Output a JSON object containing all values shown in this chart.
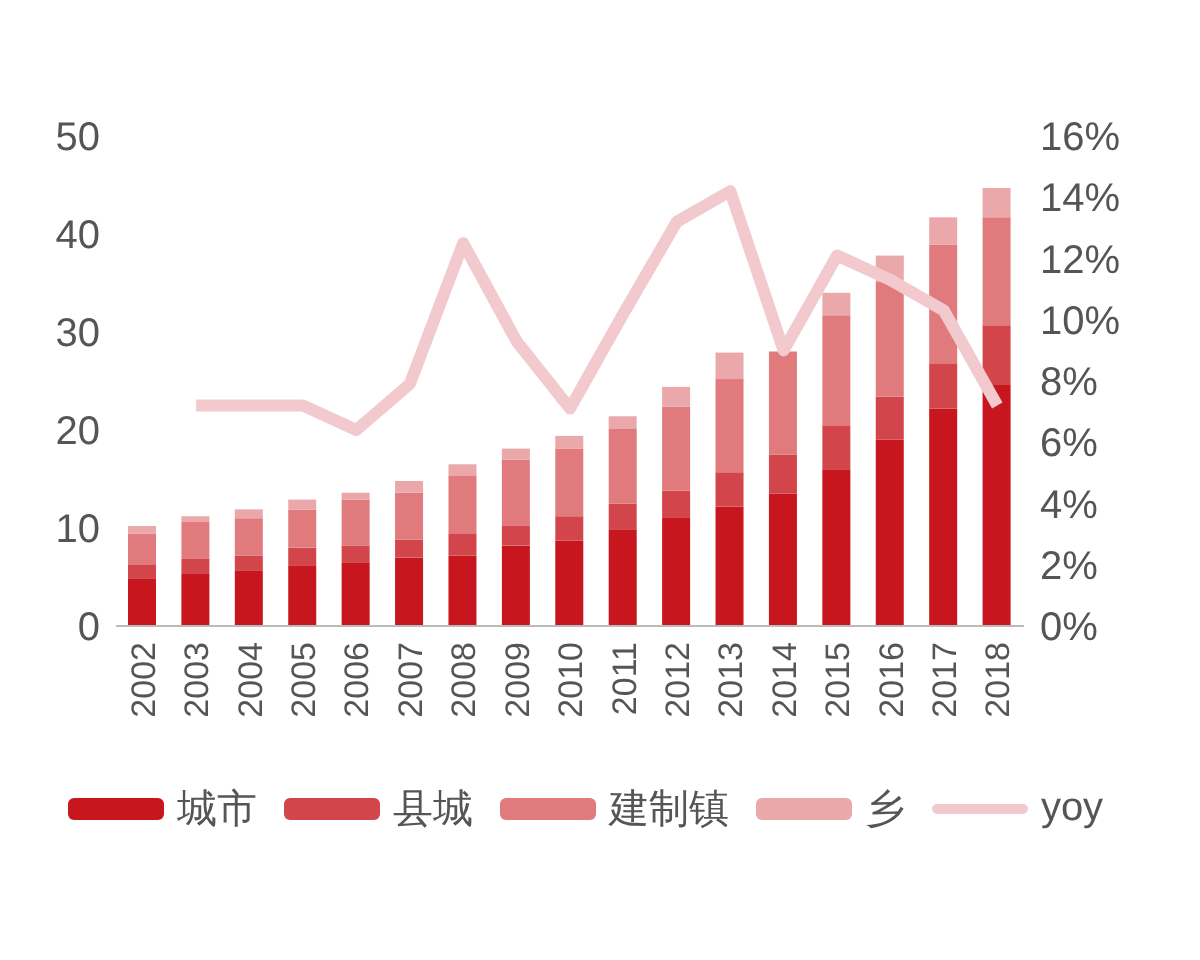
{
  "chart_data": {
    "type": "bar",
    "stacked": true,
    "categories": [
      "2002",
      "2003",
      "2004",
      "2005",
      "2006",
      "2007",
      "2008",
      "2009",
      "2010",
      "2011",
      "2012",
      "2013",
      "2014",
      "2015",
      "2016",
      "2017",
      "2018"
    ],
    "series": [
      {
        "name": "城市",
        "color": "#c8161e",
        "values": [
          4.8,
          5.3,
          5.7,
          6.2,
          6.5,
          7.0,
          7.2,
          8.2,
          8.7,
          9.8,
          11.1,
          12.2,
          13.5,
          16.0,
          19.0,
          22.2,
          24.6
        ]
      },
      {
        "name": "县城",
        "color": "#d2464b",
        "values": [
          1.5,
          1.6,
          1.5,
          1.8,
          1.7,
          1.8,
          2.2,
          2.0,
          2.5,
          2.7,
          2.7,
          3.5,
          4.0,
          4.4,
          4.4,
          4.6,
          6.1
        ]
      },
      {
        "name": "建制镇",
        "color": "#e07a7d",
        "values": [
          3.1,
          3.7,
          3.8,
          3.9,
          4.7,
          4.8,
          5.9,
          6.8,
          6.9,
          7.6,
          8.6,
          9.5,
          10.5,
          11.3,
          11.7,
          12.1,
          11.0
        ]
      },
      {
        "name": "乡",
        "color": "#eaa8ab",
        "values": [
          0.8,
          0.6,
          0.9,
          1.0,
          0.7,
          1.2,
          1.2,
          1.1,
          1.3,
          1.3,
          2.0,
          2.7,
          null,
          2.3,
          2.7,
          2.8,
          3.0
        ]
      },
      {
        "name": "yoy",
        "type": "line",
        "axis": "y2",
        "color": "#f2c9cc",
        "values": [
          null,
          7.2,
          7.2,
          7.2,
          6.4,
          7.9,
          12.5,
          9.3,
          7.1,
          10.2,
          13.2,
          14.2,
          9.0,
          12.1,
          11.3,
          10.3,
          7.2
        ]
      }
    ],
    "ylim": [
      0,
      50
    ],
    "yticks": [
      0,
      10,
      20,
      30,
      40,
      50
    ],
    "y2lim": [
      0,
      16
    ],
    "y2ticks": [
      {
        "value": 0,
        "label": "0%"
      },
      {
        "value": 2,
        "label": "2%"
      },
      {
        "value": 4,
        "label": "4%"
      },
      {
        "value": 6,
        "label": "6%"
      },
      {
        "value": 8,
        "label": "8%"
      },
      {
        "value": 10,
        "label": "10%"
      },
      {
        "value": 12,
        "label": "12%"
      },
      {
        "value": 14,
        "label": "14%"
      },
      {
        "value": 16,
        "label": "16%"
      }
    ],
    "grid": false,
    "legend": "bottom",
    "marker": "none"
  }
}
